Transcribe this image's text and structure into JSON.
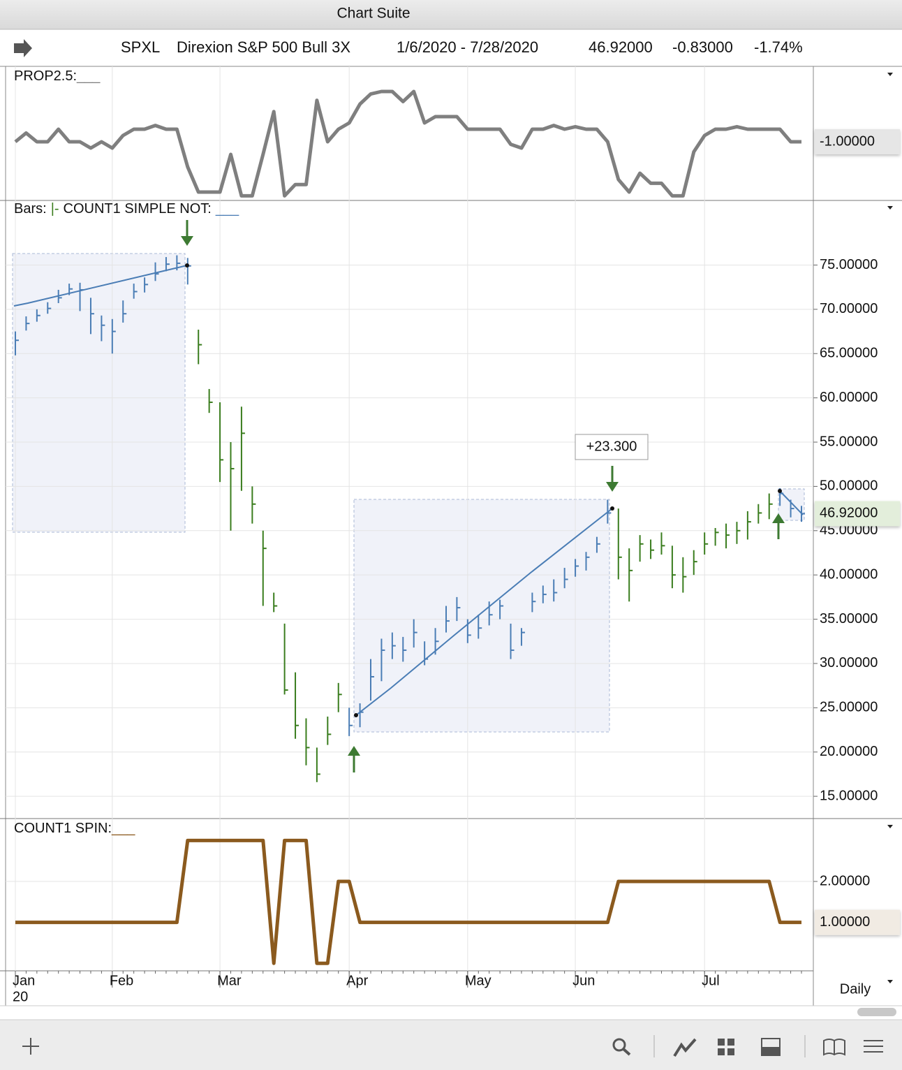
{
  "window": {
    "title": "Chart Suite"
  },
  "header": {
    "symbol": "SPXL",
    "name": "Direxion S&P 500 Bull 3X",
    "range": "1/6/2020 - 7/28/2020",
    "last": "46.92000",
    "change": "-0.83000",
    "change_pct": "-1.74%"
  },
  "toolbar": {
    "interval": "Daily"
  },
  "chart_data": [
    {
      "type": "line",
      "title": "PROP2.5:",
      "title_mark": "___",
      "color": "#7f7f7f",
      "values": [
        -1,
        -0.3,
        -1,
        -1,
        0,
        -1,
        -1,
        -1.5,
        -1,
        -1.5,
        -0.5,
        0,
        0,
        0.3,
        0,
        0,
        -3,
        -5,
        -5,
        -5,
        -2,
        -5.3,
        -5.3,
        -2,
        1.4,
        -5.3,
        -4.4,
        -4.4,
        2.3,
        -1,
        0,
        0.5,
        2,
        2.8,
        3,
        3,
        2.2,
        3,
        0.5,
        1,
        1,
        1,
        0,
        0,
        0,
        0,
        -1.2,
        -1.5,
        0,
        0,
        0.3,
        0,
        0.2,
        0,
        0,
        -1,
        -4,
        -5,
        -3.5,
        -4.3,
        -4.3,
        -5.3,
        -5.3,
        -1.8,
        -0.5,
        0,
        0,
        0.2,
        0,
        0,
        0,
        0,
        -1,
        -1
      ],
      "ylim": [
        -5.5,
        3.5
      ],
      "last_value": {
        "value": -1,
        "label": "-1.00000"
      }
    },
    {
      "type": "hlc",
      "title_parts": [
        {
          "text": "Bars:"
        },
        {
          "text": "|-",
          "color": "#3a7d1e"
        },
        {
          "text": "COUNT1 SIMPLE NOT:"
        },
        {
          "text": "___",
          "color": "#4a7db5"
        }
      ],
      "categories": [
        "Jan",
        null,
        null,
        null,
        null,
        null,
        null,
        null,
        null,
        "Feb",
        null,
        null,
        null,
        null,
        null,
        null,
        null,
        null,
        null,
        "Mar",
        null,
        null,
        null,
        null,
        null,
        null,
        null,
        null,
        null,
        null,
        null,
        "Apr",
        null,
        null,
        null,
        null,
        null,
        null,
        null,
        null,
        null,
        null,
        "May",
        null,
        null,
        null,
        null,
        null,
        null,
        null,
        null,
        null,
        "Jun",
        null,
        null,
        null,
        null,
        null,
        null,
        null,
        null,
        null,
        null,
        null,
        "Jul",
        null,
        null,
        null,
        null,
        null,
        null,
        null,
        null,
        null
      ],
      "year_label": "20",
      "high": [
        67.5,
        69.2,
        70.0,
        70.8,
        72.2,
        72.9,
        73.0,
        71.3,
        69.3,
        68.9,
        71.0,
        72.9,
        73.6,
        75.3,
        75.9,
        76.1,
        75.8,
        67.7,
        61.0,
        59.5,
        55.0,
        59.0,
        50.0,
        45.0,
        38.0,
        34.5,
        29.0,
        23.8,
        20.5,
        24.0,
        27.8,
        25.0,
        25.5,
        30.5,
        32.8,
        33.5,
        33.0,
        35.0,
        32.5,
        34.0,
        36.5,
        37.5,
        35.0,
        35.5,
        37.0,
        37.2,
        34.5,
        34.0,
        38.0,
        38.8,
        39.5,
        40.8,
        41.8,
        42.6,
        44.3,
        48.5,
        47.5,
        43.0,
        44.5,
        44.0,
        44.8,
        43.3,
        42.0,
        42.8,
        44.8,
        45.3,
        45.8,
        46.0,
        47.2,
        48.0,
        49.2,
        49.8,
        48.5,
        47.8
      ],
      "low": [
        64.8,
        67.6,
        68.6,
        69.5,
        70.7,
        71.6,
        69.8,
        67.2,
        66.4,
        65.0,
        68.5,
        71.2,
        71.9,
        73.2,
        74.3,
        74.4,
        72.8,
        63.8,
        58.3,
        50.5,
        45.0,
        49.5,
        45.8,
        36.5,
        35.8,
        26.5,
        21.5,
        18.5,
        16.6,
        20.8,
        24.5,
        21.8,
        22.8,
        25.8,
        28.0,
        30.5,
        30.2,
        31.8,
        29.8,
        31.0,
        33.5,
        34.8,
        32.3,
        32.8,
        34.3,
        35.0,
        30.5,
        32.0,
        35.8,
        36.8,
        37.0,
        38.5,
        39.8,
        40.5,
        42.5,
        45.8,
        39.5,
        37.0,
        41.5,
        41.8,
        42.3,
        38.5,
        38.0,
        40.0,
        42.3,
        43.3,
        43.0,
        43.5,
        44.0,
        45.8,
        46.3,
        47.8,
        46.5,
        46.0
      ],
      "close": [
        66.5,
        68.4,
        69.3,
        70.1,
        71.3,
        72.3,
        72.2,
        69.5,
        68.2,
        67.5,
        69.5,
        72.0,
        72.8,
        74.0,
        75.1,
        75.2,
        74.9,
        66.0,
        59.5,
        53.0,
        52.0,
        56.0,
        48.0,
        43.0,
        36.5,
        27.0,
        23.0,
        20.5,
        17.5,
        22.0,
        26.5,
        23.0,
        24.5,
        28.5,
        31.5,
        32.0,
        31.5,
        33.5,
        30.5,
        32.5,
        34.8,
        36.3,
        33.2,
        34.0,
        35.5,
        36.5,
        31.5,
        33.5,
        37.0,
        37.8,
        38.0,
        39.5,
        41.0,
        42.0,
        43.5,
        47.0,
        42.0,
        40.5,
        43.5,
        42.8,
        43.3,
        40.0,
        39.8,
        41.5,
        43.5,
        44.8,
        44.5,
        45.0,
        46.0,
        47.0,
        48.0,
        49.2,
        47.5,
        46.92
      ],
      "colors": [
        "#4a7db5",
        "#4a7db5",
        "#4a7db5",
        "#4a7db5",
        "#4a7db5",
        "#4a7db5",
        "#4a7db5",
        "#4a7db5",
        "#4a7db5",
        "#4a7db5",
        "#4a7db5",
        "#4a7db5",
        "#4a7db5",
        "#4a7db5",
        "#4a7db5",
        "#4a7db5",
        "#4a7db5",
        "#3a7d1e",
        "#3a7d1e",
        "#3a7d1e",
        "#3a7d1e",
        "#3a7d1e",
        "#3a7d1e",
        "#3a7d1e",
        "#3a7d1e",
        "#3a7d1e",
        "#3a7d1e",
        "#3a7d1e",
        "#3a7d1e",
        "#3a7d1e",
        "#3a7d1e",
        "#4a7db5",
        "#4a7db5",
        "#4a7db5",
        "#4a7db5",
        "#4a7db5",
        "#4a7db5",
        "#4a7db5",
        "#4a7db5",
        "#4a7db5",
        "#4a7db5",
        "#4a7db5",
        "#4a7db5",
        "#4a7db5",
        "#4a7db5",
        "#4a7db5",
        "#4a7db5",
        "#4a7db5",
        "#4a7db5",
        "#4a7db5",
        "#4a7db5",
        "#4a7db5",
        "#4a7db5",
        "#4a7db5",
        "#4a7db5",
        "#4a7db5",
        "#3a7d1e",
        "#3a7d1e",
        "#3a7d1e",
        "#3a7d1e",
        "#3a7d1e",
        "#3a7d1e",
        "#3a7d1e",
        "#3a7d1e",
        "#3a7d1e",
        "#3a7d1e",
        "#3a7d1e",
        "#3a7d1e",
        "#3a7d1e",
        "#3a7d1e",
        "#3a7d1e",
        "#4a7db5",
        "#4a7db5",
        "#4a7db5"
      ],
      "ylim": [
        12.8,
        81.9
      ],
      "yticks": [
        {
          "value": 15,
          "label": "15.00000"
        },
        {
          "value": 20,
          "label": "20.00000"
        },
        {
          "value": 25,
          "label": "25.00000"
        },
        {
          "value": 30,
          "label": "30.00000"
        },
        {
          "value": 35,
          "label": "35.00000"
        },
        {
          "value": 40,
          "label": "40.00000"
        },
        {
          "value": 45,
          "label": "45.00000"
        },
        {
          "value": 50,
          "label": "50.00000"
        },
        {
          "value": 55,
          "label": "55.00000"
        },
        {
          "value": 60,
          "label": "60.00000"
        },
        {
          "value": 65,
          "label": "65.00000"
        },
        {
          "value": 70,
          "label": "70.00000"
        },
        {
          "value": 75,
          "label": "75.00000"
        }
      ],
      "last_value": {
        "value": 46.92,
        "label": "46.92000"
      },
      "annotations": [
        {
          "text": "+23.300",
          "color": "#3d8a2e"
        }
      ]
    },
    {
      "type": "line",
      "title": "COUNT1 SPIN:",
      "title_mark": "___",
      "color": "#8b5a1e",
      "values": [
        1,
        1,
        1,
        1,
        1,
        1,
        1,
        1,
        1,
        1,
        1,
        1,
        1,
        1,
        1,
        1,
        3,
        3,
        3,
        3,
        3,
        3,
        3,
        3,
        0,
        3,
        3,
        3,
        0,
        0,
        2,
        2,
        1,
        1,
        1,
        1,
        1,
        1,
        1,
        1,
        1,
        1,
        1,
        1,
        1,
        1,
        1,
        1,
        1,
        1,
        1,
        1,
        1,
        1,
        1,
        1,
        2,
        2,
        2,
        2,
        2,
        2,
        2,
        2,
        2,
        2,
        2,
        2,
        2,
        2,
        2,
        1,
        1,
        1
      ],
      "ylim": [
        -0.15,
        3.4
      ],
      "yticks": [
        {
          "value": 2,
          "label": "2.00000"
        }
      ],
      "last_value": {
        "value": 1,
        "label": "1.00000"
      }
    }
  ]
}
